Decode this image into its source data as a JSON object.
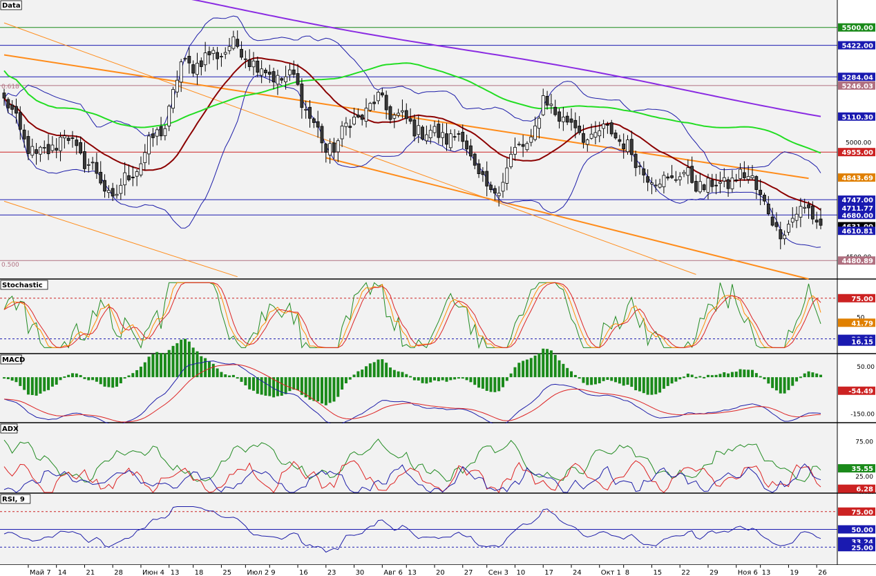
{
  "colors": {
    "bg": "#f2f2f2",
    "candle_down": "#3a3a3a",
    "candle_up": "#ffffff",
    "bb": "#1c1ca8",
    "sma_short": "#8b0000",
    "sma_mid": "#22dd22",
    "sma_long": "#8a2be2",
    "fib_line": "#ff8c1a",
    "hline_blue": "#1a1ab0",
    "hline_red": "#cc2222",
    "hline_green": "#1a8a1a",
    "level_pink": "#b07080",
    "stoch_green": "#228b22",
    "stoch_orange": "#ff8c00",
    "stoch_red": "#dd2222",
    "macd_hist": "#1a8a1a",
    "macd_line": "#1c1ca8",
    "macd_signal": "#dd2222",
    "adx_green": "#228b22",
    "adx_red": "#dd2222",
    "adx_blue": "#1c1ca8",
    "rsi_line": "#1c1ca8"
  },
  "panels": {
    "main": {
      "label": "Data"
    },
    "stoch": {
      "label": "Stochastic"
    },
    "macd": {
      "label": "MACD"
    },
    "adx": {
      "label": "ADX"
    },
    "rsi": {
      "label": "RSI, 9"
    }
  },
  "price_axis": {
    "badges": [
      {
        "text": "5500.00",
        "price": 5500,
        "color": "#1a8a1a"
      },
      {
        "text": "5422.00",
        "price": 5422,
        "color": "#1a1ab0"
      },
      {
        "text": "5284.04",
        "price": 5284.04,
        "color": "#1a1ab0"
      },
      {
        "text": "5246.03",
        "price": 5246.03,
        "color": "#b07080"
      },
      {
        "text": "5110.30",
        "price": 5110.3,
        "color": "#1a1ab0"
      },
      {
        "text": "4955.00",
        "price": 4955,
        "color": "#cc2222"
      },
      {
        "text": "4843.69",
        "price": 4843.69,
        "color": "#e08000"
      },
      {
        "text": "4747.00",
        "price": 4747,
        "color": "#1a1ab0"
      },
      {
        "text": "4711.77",
        "price": 4711.77,
        "color": "#1a1ab0"
      },
      {
        "text": "4680.00",
        "price": 4680,
        "color": "#1a1ab0"
      },
      {
        "text": "4631.00",
        "price": 4631,
        "color": "#000000"
      },
      {
        "text": "4610.81",
        "price": 4610.81,
        "color": "#1a1ab0"
      },
      {
        "text": "4480.89",
        "price": 4480.89,
        "color": "#b07080"
      }
    ],
    "ticks": [
      {
        "text": "5000.00",
        "price": 5000
      },
      {
        "text": "4500.00",
        "price": 4500
      }
    ],
    "fib_labels": [
      {
        "text": "0.618",
        "price": 5246
      },
      {
        "text": "0.500",
        "price": 4466
      }
    ]
  },
  "stoch_axis": {
    "badges": [
      {
        "text": "75.00",
        "value": 75,
        "color": "#cc2222"
      },
      {
        "text": "41.79",
        "value": 41.79,
        "color": "#e08000"
      },
      {
        "text": "20.00",
        "value": 20,
        "color": "#1a1ab0"
      },
      {
        "text": "16.15",
        "value": 16.15,
        "color": "#1a1ab0"
      }
    ],
    "ticks": [
      {
        "text": "50",
        "value": 50
      }
    ]
  },
  "macd_axis": {
    "badges": [
      {
        "text": "-54.49",
        "value": -54.49,
        "color": "#cc2222"
      }
    ],
    "ticks": [
      {
        "text": "50.00",
        "value": 50
      },
      {
        "text": "-50.00",
        "value": -50
      },
      {
        "text": "-150.00",
        "value": -150
      }
    ]
  },
  "adx_axis": {
    "badges": [
      {
        "text": "35.55",
        "value": 35.55,
        "color": "#1a8a1a"
      },
      {
        "text": "6.28",
        "value": 6.28,
        "color": "#cc2222"
      }
    ],
    "ticks": [
      {
        "text": "75.00",
        "value": 75
      },
      {
        "text": "25.00",
        "value": 25
      },
      {
        "text": "0.00",
        "value": 0
      }
    ]
  },
  "rsi_axis": {
    "badges": [
      {
        "text": "75.00",
        "value": 75,
        "color": "#cc2222"
      },
      {
        "text": "50.00",
        "value": 50,
        "color": "#1a1ab0"
      },
      {
        "text": "33.24",
        "value": 33.24,
        "color": "#1a1ab0"
      },
      {
        "text": "25.00",
        "value": 25,
        "color": "#1a1ab0"
      }
    ]
  },
  "x_axis_labels": [
    "Май 7",
    "14",
    "21",
    "28",
    "Июн 4",
    "13",
    "18",
    "25",
    "Июл 2",
    "9",
    "16",
    "23",
    "30",
    "Авг 6",
    "13",
    "20",
    "27",
    "Сен 3",
    "10",
    "17",
    "24",
    "Окт 1",
    "8",
    "15",
    "22",
    "29",
    "Ноя 6",
    "13",
    "19",
    "26"
  ],
  "x_axis_bars": [
    6,
    13,
    20,
    27,
    34,
    41,
    47,
    54,
    60,
    66,
    73,
    80,
    87,
    94,
    100,
    107,
    114,
    120,
    127,
    134,
    141,
    148,
    154,
    161,
    168,
    175,
    182,
    188,
    195,
    202
  ],
  "chart_data": {
    "type": "candlestick",
    "bar_count": 204,
    "price_range": [
      4400,
      5620
    ],
    "horizontal_levels": [
      {
        "price": 5500,
        "color": "green"
      },
      {
        "price": 5422,
        "color": "blue"
      },
      {
        "price": 5284.04,
        "color": "blue"
      },
      {
        "price": 5246.03,
        "color": "pink"
      },
      {
        "price": 4955,
        "color": "red"
      },
      {
        "price": 4747,
        "color": "blue"
      },
      {
        "price": 4680,
        "color": "blue"
      },
      {
        "price": 4480.89,
        "color": "pink"
      }
    ],
    "trend_channel": [
      {
        "from": [
          0,
          5380
        ],
        "to": [
          200,
          4840
        ]
      },
      {
        "from": [
          80,
          4930
        ],
        "to": [
          200,
          4400
        ]
      },
      {
        "from": [
          0,
          5520
        ],
        "to": [
          172,
          4420
        ]
      },
      {
        "from": [
          0,
          4740
        ],
        "to": [
          58,
          4410
        ]
      }
    ],
    "close_keypoints": [
      [
        0,
        5180
      ],
      [
        8,
        4920
      ],
      [
        15,
        5030
      ],
      [
        22,
        4880
      ],
      [
        27,
        4750
      ],
      [
        33,
        4900
      ],
      [
        40,
        5080
      ],
      [
        44,
        5330
      ],
      [
        50,
        5360
      ],
      [
        56,
        5420
      ],
      [
        60,
        5390
      ],
      [
        65,
        5300
      ],
      [
        72,
        5270
      ],
      [
        77,
        5080
      ],
      [
        80,
        4950
      ],
      [
        86,
        5080
      ],
      [
        93,
        5180
      ],
      [
        100,
        5080
      ],
      [
        107,
        5030
      ],
      [
        114,
        5020
      ],
      [
        118,
        4850
      ],
      [
        121,
        4750
      ],
      [
        126,
        4930
      ],
      [
        131,
        5010
      ],
      [
        134,
        5180
      ],
      [
        140,
        5090
      ],
      [
        146,
        5010
      ],
      [
        151,
        5060
      ],
      [
        156,
        4940
      ],
      [
        162,
        4820
      ],
      [
        168,
        4860
      ],
      [
        175,
        4800
      ],
      [
        180,
        4830
      ],
      [
        186,
        4850
      ],
      [
        189,
        4720
      ],
      [
        192,
        4610
      ],
      [
        196,
        4660
      ],
      [
        200,
        4720
      ],
      [
        203,
        4631
      ]
    ],
    "stochastic": {
      "overbought": 75,
      "oversold": 20,
      "last_k": 41.79,
      "last_d": 16.15
    },
    "macd": {
      "last": -54.49,
      "range": [
        -190,
        100
      ]
    },
    "adx": {
      "adx_last": 35.55,
      "di_minus_last": 6.28
    },
    "rsi": {
      "period": 9,
      "last": 33.24,
      "levels": [
        75,
        50,
        25
      ]
    }
  }
}
